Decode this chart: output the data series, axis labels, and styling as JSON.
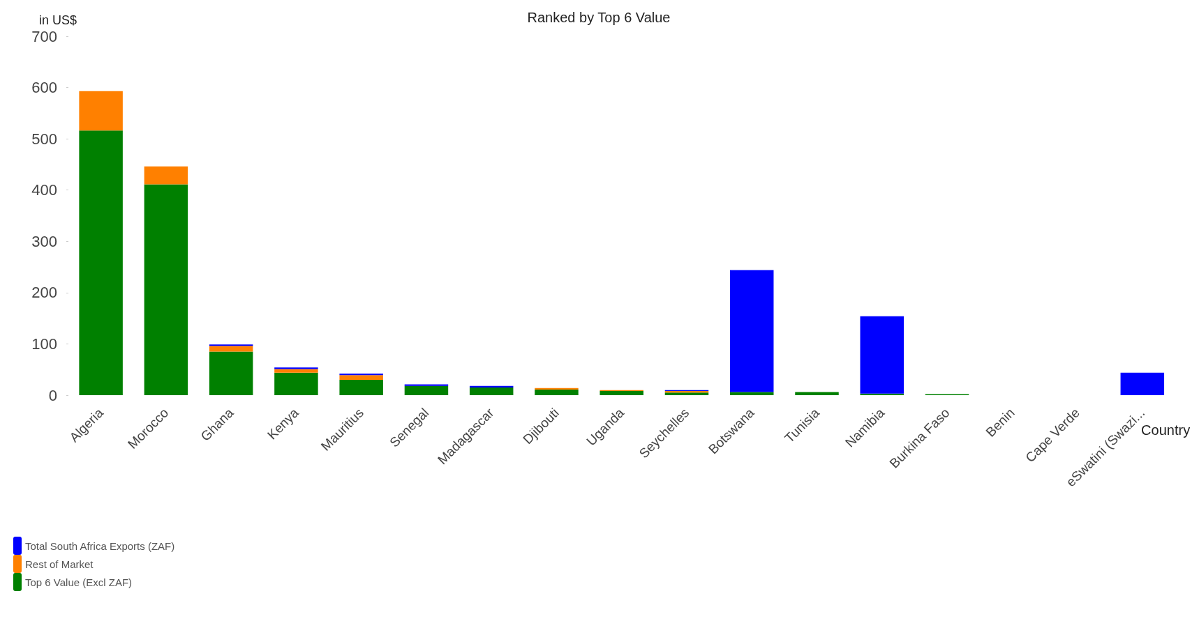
{
  "chart_data": {
    "type": "bar",
    "title": "Ranked by Top 6 Value",
    "ylabel": "in US$",
    "xlabel": "Country",
    "stacked": true,
    "categories": [
      "Algeria",
      "Morocco",
      "Ghana",
      "Kenya",
      "Mauritius",
      "Senegal",
      "Madagascar",
      "Djibouti",
      "Uganda",
      "Seychelles",
      "Botswana",
      "Tunisia",
      "Namibia",
      "Burkina Faso",
      "Benin",
      "Cape Verde",
      "eSwatini (Swazi..."
    ],
    "series": [
      {
        "name": "Top 6 Value (Excl ZAF)",
        "color": "#008000",
        "values": [
          516,
          411,
          85,
          44,
          30,
          18,
          15,
          11,
          8,
          5,
          6,
          6,
          3,
          2,
          0,
          0,
          0
        ]
      },
      {
        "name": "Rest of Market",
        "color": "#ff8000",
        "values": [
          77,
          35,
          11,
          7,
          9,
          0,
          0,
          3,
          2,
          3,
          0,
          0,
          0,
          0,
          0,
          0,
          0
        ]
      },
      {
        "name": "Total South Africa Exports (ZAF)",
        "color": "#0000ff",
        "values": [
          0,
          0,
          3,
          3,
          3,
          3,
          3,
          0,
          0,
          2,
          238,
          0,
          151,
          0,
          0,
          0,
          44
        ]
      }
    ],
    "ylim": [
      0,
      700
    ],
    "yticks": [
      0,
      100,
      200,
      300,
      400,
      500,
      600,
      700
    ],
    "grid": false,
    "legend": "bottom left"
  }
}
